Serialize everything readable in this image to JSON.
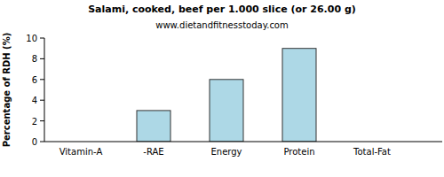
{
  "chart_data": {
    "type": "bar",
    "title": "Salami, cooked, beef per 1.000 slice (or 26.00 g)",
    "subtitle": "www.dietandfitnesstoday.com",
    "y_label": "Percentage of RDH (%)",
    "categories": [
      "Vitamin-A",
      "-RAE",
      "Energy",
      "Protein",
      "Total-Fat"
    ],
    "values": [
      0,
      3,
      6,
      9,
      0
    ],
    "color": "#add8e6",
    "ylim": [
      0,
      10
    ],
    "yticks": [
      0,
      2,
      4,
      6,
      8,
      10
    ],
    "grid": false
  }
}
